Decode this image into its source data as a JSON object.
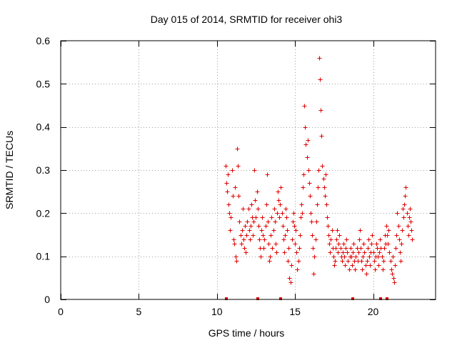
{
  "chart_data": {
    "type": "scatter",
    "title": "Day 015 of 2014, SRMTID for receiver ohi3",
    "xlabel": "GPS time / hours",
    "ylabel": "SRMTID / TECUs",
    "xlim": [
      0,
      24
    ],
    "ylim": [
      0,
      0.6
    ],
    "xticks": [
      0,
      5,
      10,
      15,
      20
    ],
    "xtick_labels": [
      "0",
      "5",
      "10",
      "15",
      "20"
    ],
    "yticks": [
      0,
      0.1,
      0.2,
      0.3,
      0.4,
      0.5,
      0.6
    ],
    "ytick_labels": [
      "0",
      "0.1",
      "0.2",
      "0.3",
      "0.4",
      "0.5",
      "0.6"
    ],
    "grid": true,
    "marker": "+",
    "color": "#e00000",
    "series": [
      {
        "name": "SRMTID",
        "points": [
          [
            10.55,
            0.31
          ],
          [
            10.6,
            0.27
          ],
          [
            10.65,
            0.25
          ],
          [
            10.7,
            0.29
          ],
          [
            10.75,
            0.22
          ],
          [
            10.8,
            0.2
          ],
          [
            10.85,
            0.16
          ],
          [
            10.9,
            0.19
          ],
          [
            10.95,
            0.3
          ],
          [
            11.0,
            0.24
          ],
          [
            11.05,
            0.14
          ],
          [
            11.1,
            0.13
          ],
          [
            11.15,
            0.26
          ],
          [
            11.2,
            0.1
          ],
          [
            11.25,
            0.09
          ],
          [
            11.3,
            0.35
          ],
          [
            11.35,
            0.31
          ],
          [
            11.4,
            0.24
          ],
          [
            11.45,
            0.18
          ],
          [
            11.5,
            0.15
          ],
          [
            11.55,
            0.13
          ],
          [
            11.6,
            0.16
          ],
          [
            11.65,
            0.21
          ],
          [
            11.7,
            0.14
          ],
          [
            11.75,
            0.12
          ],
          [
            11.8,
            0.17
          ],
          [
            11.85,
            0.11
          ],
          [
            11.9,
            0.15
          ],
          [
            11.95,
            0.18
          ],
          [
            12.0,
            0.21
          ],
          [
            12.05,
            0.16
          ],
          [
            12.1,
            0.14
          ],
          [
            12.15,
            0.17
          ],
          [
            12.2,
            0.22
          ],
          [
            12.25,
            0.19
          ],
          [
            12.3,
            0.15
          ],
          [
            12.35,
            0.18
          ],
          [
            12.4,
            0.3
          ],
          [
            12.45,
            0.23
          ],
          [
            12.5,
            0.19
          ],
          [
            12.55,
            0.25
          ],
          [
            12.6,
            0.21
          ],
          [
            12.65,
            0.17
          ],
          [
            12.7,
            0.14
          ],
          [
            12.75,
            0.12
          ],
          [
            12.8,
            0.1
          ],
          [
            12.85,
            0.16
          ],
          [
            12.9,
            0.19
          ],
          [
            12.95,
            0.15
          ],
          [
            13.0,
            0.12
          ],
          [
            13.05,
            0.14
          ],
          [
            13.1,
            0.17
          ],
          [
            13.15,
            0.22
          ],
          [
            13.2,
            0.29
          ],
          [
            13.25,
            0.18
          ],
          [
            13.3,
            0.13
          ],
          [
            13.35,
            0.09
          ],
          [
            13.4,
            0.1
          ],
          [
            13.45,
            0.15
          ],
          [
            13.5,
            0.19
          ],
          [
            13.55,
            0.12
          ],
          [
            13.6,
            0.16
          ],
          [
            13.65,
            0.21
          ],
          [
            13.7,
            0.18
          ],
          [
            13.75,
            0.13
          ],
          [
            13.8,
            0.11
          ],
          [
            13.85,
            0.2
          ],
          [
            13.9,
            0.25
          ],
          [
            13.95,
            0.23
          ],
          [
            14.0,
            0.19
          ],
          [
            14.05,
            0.22
          ],
          [
            14.1,
            0.26
          ],
          [
            14.15,
            0.2
          ],
          [
            14.2,
            0.17
          ],
          [
            14.25,
            0.14
          ],
          [
            14.3,
            0.11
          ],
          [
            14.35,
            0.15
          ],
          [
            14.4,
            0.21
          ],
          [
            14.45,
            0.19
          ],
          [
            14.5,
            0.16
          ],
          [
            14.55,
            0.09
          ],
          [
            14.6,
            0.12
          ],
          [
            14.65,
            0.05
          ],
          [
            14.7,
            0.04
          ],
          [
            14.75,
            0.08
          ],
          [
            14.8,
            0.14
          ],
          [
            14.85,
            0.18
          ],
          [
            14.9,
            0.2
          ],
          [
            14.95,
            0.17
          ],
          [
            15.0,
            0.13
          ],
          [
            15.05,
            0.16
          ],
          [
            15.1,
            0.11
          ],
          [
            15.15,
            0.07
          ],
          [
            15.2,
            0.09
          ],
          [
            15.25,
            0.12
          ],
          [
            15.3,
            0.15
          ],
          [
            15.35,
            0.19
          ],
          [
            15.4,
            0.22
          ],
          [
            15.45,
            0.2
          ],
          [
            15.5,
            0.26
          ],
          [
            15.55,
            0.29
          ],
          [
            15.6,
            0.45
          ],
          [
            15.65,
            0.4
          ],
          [
            15.7,
            0.36
          ],
          [
            15.75,
            0.33
          ],
          [
            15.8,
            0.37
          ],
          [
            15.85,
            0.3
          ],
          [
            15.9,
            0.27
          ],
          [
            15.95,
            0.24
          ],
          [
            16.0,
            0.2
          ],
          [
            16.05,
            0.18
          ],
          [
            16.1,
            0.15
          ],
          [
            16.15,
            0.12
          ],
          [
            16.2,
            0.06
          ],
          [
            16.25,
            0.1
          ],
          [
            16.3,
            0.14
          ],
          [
            16.35,
            0.18
          ],
          [
            16.4,
            0.22
          ],
          [
            16.45,
            0.26
          ],
          [
            16.5,
            0.3
          ],
          [
            16.55,
            0.56
          ],
          [
            16.6,
            0.51
          ],
          [
            16.65,
            0.44
          ],
          [
            16.7,
            0.38
          ],
          [
            16.75,
            0.31
          ],
          [
            16.8,
            0.28
          ],
          [
            16.85,
            0.26
          ],
          [
            16.9,
            0.24
          ],
          [
            16.95,
            0.29
          ],
          [
            17.0,
            0.22
          ],
          [
            17.05,
            0.19
          ],
          [
            17.1,
            0.17
          ],
          [
            17.15,
            0.15
          ],
          [
            17.2,
            0.13
          ],
          [
            17.25,
            0.11
          ],
          [
            17.3,
            0.14
          ],
          [
            17.35,
            0.16
          ],
          [
            17.4,
            0.12
          ],
          [
            17.45,
            0.1
          ],
          [
            17.5,
            0.08
          ],
          [
            17.55,
            0.09
          ],
          [
            17.6,
            0.12
          ],
          [
            17.65,
            0.14
          ],
          [
            17.7,
            0.16
          ],
          [
            17.75,
            0.11
          ],
          [
            17.8,
            0.13
          ],
          [
            17.85,
            0.15
          ],
          [
            17.9,
            0.12
          ],
          [
            17.95,
            0.1
          ],
          [
            18.0,
            0.09
          ],
          [
            18.05,
            0.11
          ],
          [
            18.1,
            0.13
          ],
          [
            18.15,
            0.1
          ],
          [
            18.2,
            0.08
          ],
          [
            18.25,
            0.12
          ],
          [
            18.3,
            0.14
          ],
          [
            18.35,
            0.11
          ],
          [
            18.4,
            0.09
          ],
          [
            18.45,
            0.07
          ],
          [
            18.5,
            0.1
          ],
          [
            18.55,
            0.12
          ],
          [
            18.6,
            0.1
          ],
          [
            18.65,
            0.08
          ],
          [
            18.7,
            0.11
          ],
          [
            18.75,
            0.13
          ],
          [
            18.8,
            0.09
          ],
          [
            18.85,
            0.07
          ],
          [
            18.9,
            0.1
          ],
          [
            18.95,
            0.12
          ],
          [
            19.0,
            0.09
          ],
          [
            19.05,
            0.11
          ],
          [
            19.1,
            0.14
          ],
          [
            19.15,
            0.16
          ],
          [
            19.2,
            0.12
          ],
          [
            19.25,
            0.09
          ],
          [
            19.3,
            0.07
          ],
          [
            19.35,
            0.1
          ],
          [
            19.4,
            0.13
          ],
          [
            19.45,
            0.11
          ],
          [
            19.5,
            0.08
          ],
          [
            19.55,
            0.06
          ],
          [
            19.6,
            0.09
          ],
          [
            19.65,
            0.12
          ],
          [
            19.7,
            0.14
          ],
          [
            19.75,
            0.1
          ],
          [
            19.8,
            0.08
          ],
          [
            19.85,
            0.11
          ],
          [
            19.9,
            0.13
          ],
          [
            19.95,
            0.15
          ],
          [
            20.0,
            0.11
          ],
          [
            20.05,
            0.09
          ],
          [
            20.1,
            0.07
          ],
          [
            20.15,
            0.1
          ],
          [
            20.2,
            0.13
          ],
          [
            20.25,
            0.12
          ],
          [
            20.3,
            0.1
          ],
          [
            20.35,
            0.08
          ],
          [
            20.4,
            0.11
          ],
          [
            20.45,
            0.14
          ],
          [
            20.5,
            0.12
          ],
          [
            20.55,
            0.1
          ],
          [
            20.6,
            0.07
          ],
          [
            20.65,
            0.09
          ],
          [
            20.7,
            0.12
          ],
          [
            20.75,
            0.15
          ],
          [
            20.8,
            0.13
          ],
          [
            20.85,
            0.17
          ],
          [
            20.9,
            0.15
          ],
          [
            20.95,
            0.13
          ],
          [
            21.0,
            0.16
          ],
          [
            21.05,
            0.11
          ],
          [
            21.1,
            0.09
          ],
          [
            21.15,
            0.07
          ],
          [
            21.2,
            0.06
          ],
          [
            21.25,
            0.1
          ],
          [
            21.3,
            0.05
          ],
          [
            21.35,
            0.04
          ],
          [
            21.4,
            0.08
          ],
          [
            21.45,
            0.12
          ],
          [
            21.5,
            0.15
          ],
          [
            21.55,
            0.2
          ],
          [
            21.6,
            0.17
          ],
          [
            21.65,
            0.14
          ],
          [
            21.7,
            0.11
          ],
          [
            21.75,
            0.09
          ],
          [
            21.8,
            0.13
          ],
          [
            21.85,
            0.16
          ],
          [
            21.9,
            0.21
          ],
          [
            21.95,
            0.19
          ],
          [
            22.0,
            0.22
          ],
          [
            22.05,
            0.24
          ],
          [
            22.1,
            0.26
          ],
          [
            22.15,
            0.2
          ],
          [
            22.2,
            0.17
          ],
          [
            22.25,
            0.15
          ],
          [
            22.3,
            0.19
          ],
          [
            22.35,
            0.21
          ],
          [
            22.4,
            0.18
          ],
          [
            22.45,
            0.16
          ],
          [
            22.5,
            0.14
          ]
        ]
      }
    ],
    "zero_markers": [
      10.6,
      12.6,
      14.1,
      18.7,
      20.5,
      20.9
    ]
  }
}
